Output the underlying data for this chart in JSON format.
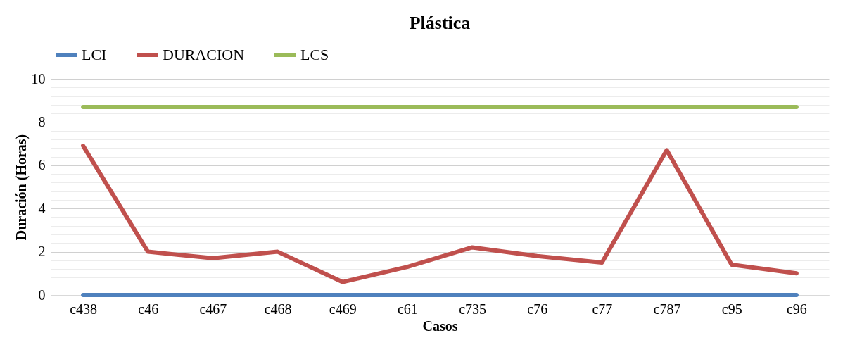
{
  "chart_data": {
    "type": "line",
    "title": "Plástica",
    "xlabel": "Casos",
    "ylabel": "Duración (Horas)",
    "categories": [
      "c438",
      "c46",
      "c467",
      "c468",
      "c469",
      "c61",
      "c735",
      "c76",
      "c77",
      "c787",
      "c95",
      "c96"
    ],
    "series": [
      {
        "name": "LCI",
        "color": "#4f81bd",
        "values": [
          0,
          0,
          0,
          0,
          0,
          0,
          0,
          0,
          0,
          0,
          0,
          0
        ]
      },
      {
        "name": "DURACION",
        "color": "#c0504d",
        "values": [
          6.9,
          2.0,
          1.7,
          2.0,
          0.6,
          1.3,
          2.2,
          1.8,
          1.5,
          6.7,
          1.4,
          1.0
        ]
      },
      {
        "name": "LCS",
        "color": "#9bbb59",
        "values": [
          8.7,
          8.7,
          8.7,
          8.7,
          8.7,
          8.7,
          8.7,
          8.7,
          8.7,
          8.7,
          8.7,
          8.7
        ]
      }
    ],
    "ylim": [
      0,
      10
    ],
    "yticks": [
      0,
      {
        "value": 0.4,
        "label": null
      },
      {
        "value": 0.8,
        "label": null
      },
      {
        "value": 1.2,
        "label": null
      },
      {
        "value": 1.6,
        "label": null
      },
      2,
      {
        "value": 2.4,
        "label": null
      },
      {
        "value": 2.8,
        "label": null
      },
      {
        "value": 3.2,
        "label": null
      },
      {
        "value": 3.6,
        "label": null
      },
      4,
      {
        "value": 4.4,
        "label": null
      },
      {
        "value": 4.8,
        "label": null
      },
      {
        "value": 5.2,
        "label": null
      },
      {
        "value": 5.6,
        "label": null
      },
      6,
      {
        "value": 6.4,
        "label": null
      },
      {
        "value": 6.8,
        "label": null
      },
      {
        "value": 7.2,
        "label": null
      },
      {
        "value": 7.6,
        "label": null
      },
      8,
      {
        "value": 8.4,
        "label": null
      },
      {
        "value": 8.8,
        "label": null
      },
      {
        "value": 9.2,
        "label": null
      },
      {
        "value": 9.6,
        "label": null
      },
      10
    ],
    "grid": "y",
    "legend": "top",
    "marker": "none",
    "line_style": "solid"
  }
}
